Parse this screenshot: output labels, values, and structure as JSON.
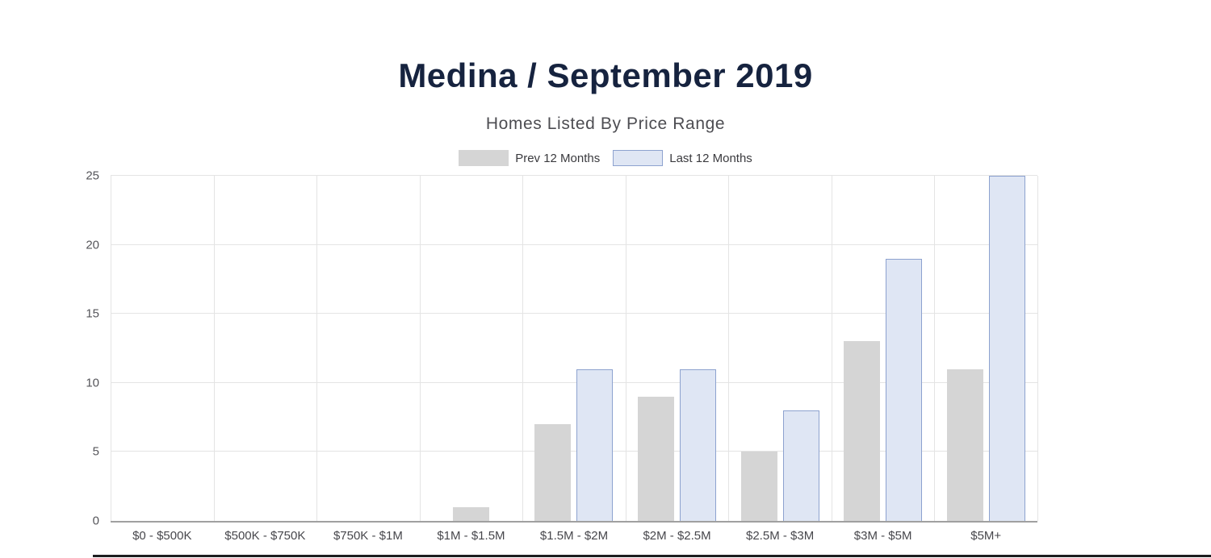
{
  "header": {
    "title": "Medina / September 2019",
    "subtitle": "Homes Listed By Price Range"
  },
  "colors": {
    "title_text": "#16233f",
    "subtitle_text": "#4d4d52",
    "grid": "#e4e4e4",
    "axis_line": "#a0a0a0",
    "prev_series": "#d5d5d5",
    "last_series_fill": "#dfe6f4",
    "last_series_border": "#8da2cf"
  },
  "chart_data": {
    "type": "bar",
    "title": "Medina / September 2019",
    "subtitle": "Homes Listed By Price Range",
    "categories": [
      "$0 - $500K",
      "$500K - $750K",
      "$750K - $1M",
      "$1M - $1.5M",
      "$1.5M - $2M",
      "$2M - $2.5M",
      "$2.5M - $3M",
      "$3M - $5M",
      "$5M+"
    ],
    "series": [
      {
        "name": "Prev 12 Months",
        "color": "#d5d5d5",
        "border": null,
        "values": [
          0,
          0,
          0,
          1,
          7,
          9,
          5,
          13,
          11
        ]
      },
      {
        "name": "Last 12 Months",
        "color": "#dfe6f4",
        "border": "#8da2cf",
        "values": [
          0,
          0,
          0,
          0,
          11,
          11,
          8,
          19,
          25
        ]
      }
    ],
    "xlabel": "",
    "ylabel": "",
    "ylim": [
      0,
      25
    ],
    "yticks": [
      0,
      5,
      10,
      15,
      20,
      25
    ],
    "grid": true,
    "legend_position": "top"
  }
}
